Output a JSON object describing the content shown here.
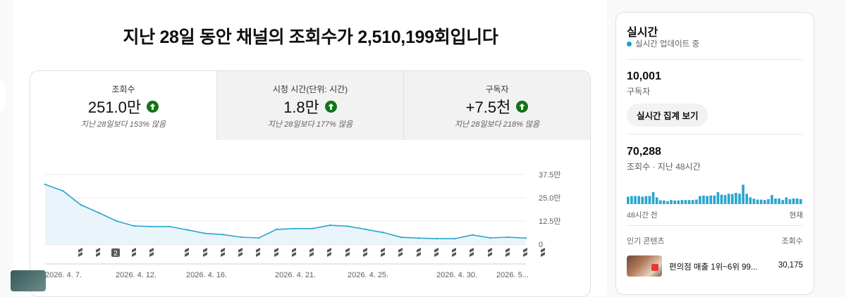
{
  "headline": "지난 28일 동안 채널의 조회수가 2,510,199회입니다",
  "metrics": [
    {
      "label": "조회수",
      "value": "251.0만",
      "compare": "지난 28일보다 153% 많음",
      "trend_icon": "arrow-up-icon"
    },
    {
      "label": "시청 시간(단위: 시간)",
      "value": "1.8만",
      "compare": "지난 28일보다 177% 많음",
      "trend_icon": "arrow-up-icon"
    },
    {
      "label": "구독자",
      "value": "+7.5천",
      "compare": "지난 28일보다 218% 많음",
      "trend_icon": "arrow-up-icon"
    }
  ],
  "chart_data": {
    "type": "area",
    "y_ticks": [
      "37.5만",
      "25.0만",
      "12.5만",
      "0"
    ],
    "ylim": [
      0,
      375000
    ],
    "x_tick_labels": [
      "2026. 4. 7.",
      "2026. 4. 12.",
      "2026. 4. 16.",
      "2026. 4. 21.",
      "2026. 4. 25.",
      "2026. 4. 30.",
      "2026. 5..."
    ],
    "series": [
      {
        "values": [
          322000,
          287000,
          212000,
          170000,
          125000,
          98000,
          95000,
          95000,
          77000,
          58000,
          52000,
          38000,
          34000,
          80000,
          84000,
          84000,
          102000,
          97000,
          80000,
          63000,
          37000,
          33000,
          30000,
          30000,
          50000,
          34000,
          38000,
          33000
        ]
      }
    ],
    "grid": true,
    "marker_row": [
      "shorts-icon",
      "shorts-icon",
      "2",
      "shorts-icon",
      "shorts-icon",
      "shorts-icon",
      "shorts-icon",
      "shorts-icon",
      "shorts-icon",
      "shorts-icon",
      "shorts-icon",
      "shorts-icon",
      "shorts-icon",
      "shorts-icon",
      "shorts-icon",
      "shorts-icon",
      "shorts-icon",
      "shorts-icon",
      "shorts-icon",
      "shorts-icon",
      "shorts-icon",
      "shorts-icon",
      "shorts-icon",
      "shorts-icon",
      "shorts-icon",
      "shorts-icon"
    ]
  },
  "realtime": {
    "title": "실시간",
    "status": "실시간 업데이트 중",
    "subscribers_value": "10,001",
    "subscribers_label": "구독자",
    "button_label": "실시간 집계 보기",
    "views_value": "70,288",
    "views_label": "조회수 · 지난 48시간",
    "bars": [
      0.33,
      0.36,
      0.36,
      0.36,
      0.33,
      0.36,
      0.36,
      0.53,
      0.3,
      0.17,
      0.16,
      0.13,
      0.18,
      0.16,
      0.16,
      0.18,
      0.18,
      0.18,
      0.18,
      0.2,
      0.36,
      0.38,
      0.36,
      0.38,
      0.38,
      0.53,
      0.42,
      0.4,
      0.46,
      0.45,
      0.5,
      0.46,
      0.86,
      0.46,
      0.3,
      0.24,
      0.2,
      0.2,
      0.18,
      0.22,
      0.4,
      0.25,
      0.25,
      0.18,
      0.3,
      0.22,
      0.25,
      0.25,
      0.22
    ],
    "axis_left": "48시간 전",
    "axis_right": "현재",
    "popular_label": "인기 콘텐츠",
    "popular_views_label": "조회수",
    "popular": [
      {
        "title": "편의점 매출 1위~6위 99...",
        "views": "30,175"
      }
    ]
  }
}
